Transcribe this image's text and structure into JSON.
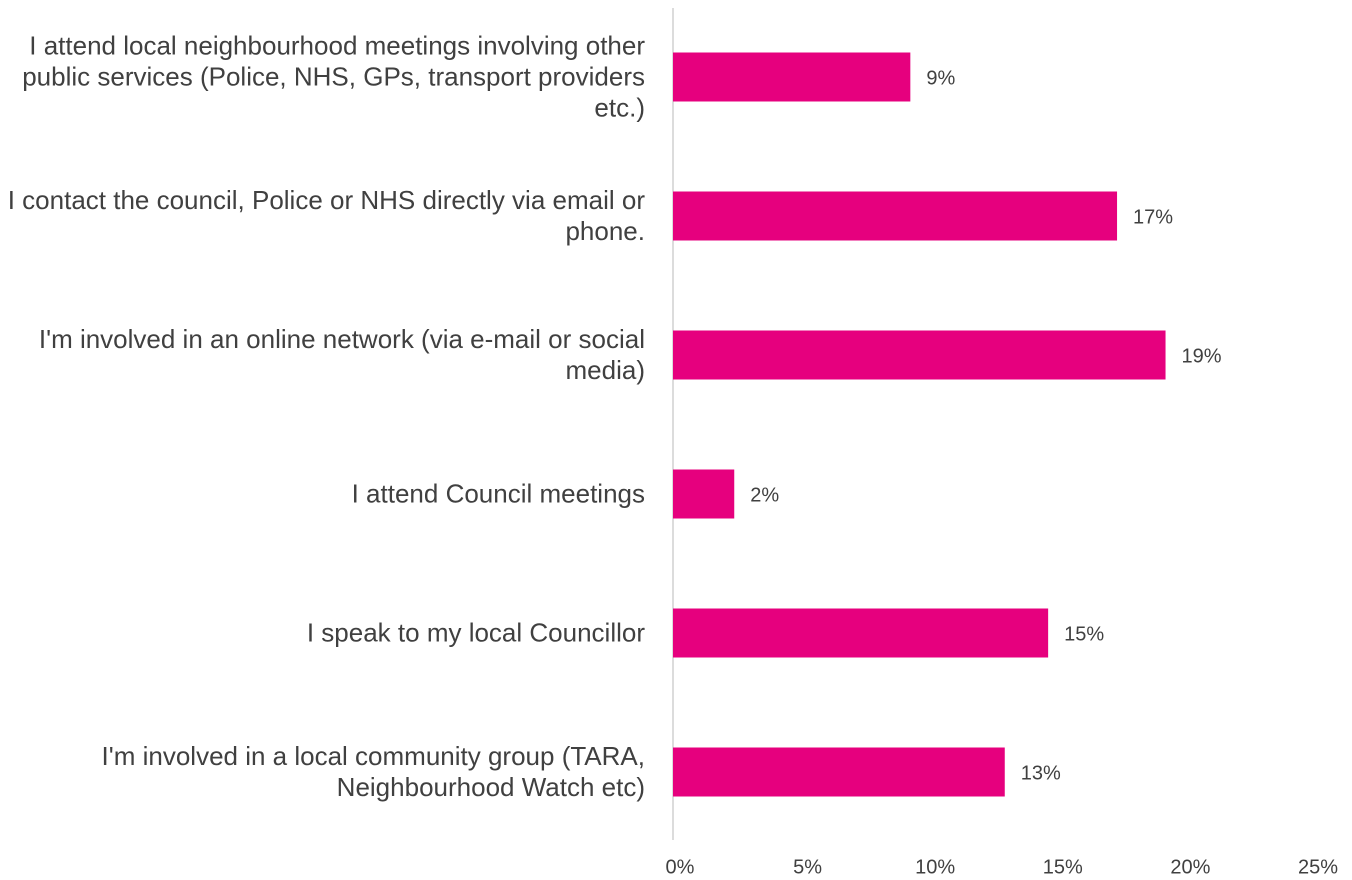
{
  "chart_data": {
    "type": "bar",
    "orientation": "horizontal",
    "categories": [
      "I attend local neighbourhood meetings involving other public services (Police, NHS, GPs, transport providers etc.)",
      "I contact the council, Police or NHS directly via email or phone.",
      "I'm involved in an online network (via e-mail or social media)",
      "I attend Council meetings",
      "I speak to my local Councillor",
      "I'm involved in a local community group (TARA, Neighbourhood Watch etc)"
    ],
    "values": [
      9.3,
      17.4,
      19.3,
      2.4,
      14.7,
      13.0
    ],
    "value_labels": [
      "9%",
      "17%",
      "19%",
      "2%",
      "15%",
      "13%"
    ],
    "color": "#e6007e",
    "xlim": [
      0,
      25
    ],
    "xticks": [
      {
        "value": 0,
        "label": "0%"
      },
      {
        "value": 5,
        "label": "5%"
      },
      {
        "value": 10,
        "label": "10%"
      },
      {
        "value": 15,
        "label": "15%"
      },
      {
        "value": 20,
        "label": "20%"
      },
      {
        "value": 25,
        "label": "25%"
      }
    ],
    "grid": false
  }
}
